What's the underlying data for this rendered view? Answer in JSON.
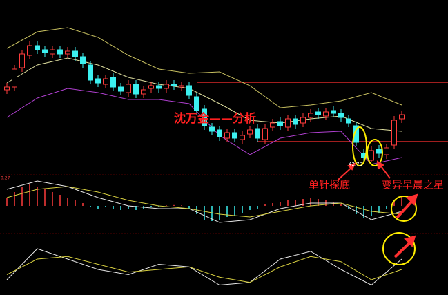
{
  "chart_data": {
    "type": "candlestick",
    "title": "沈万金——分析",
    "annotations": [
      "单针探底",
      "变异早晨之星"
    ],
    "low_label": "42.70",
    "macd_label": "0.27",
    "ylim": [
      42,
      54
    ],
    "open": [
      48.0,
      48.2,
      49.6,
      50.5,
      51.2,
      50.9,
      50.6,
      50.9,
      50.6,
      50.8,
      50.4,
      49.8,
      48.8,
      48.4,
      48.9,
      48.2,
      47.8,
      48.4,
      47.7,
      48.1,
      48.3,
      48.1,
      48.4,
      48.2,
      48.3,
      47.5,
      46.6,
      45.3,
      45.1,
      44.5,
      44.9,
      44.4,
      44.8,
      45.2,
      44.4,
      45.3,
      45.7,
      45.3,
      45.9,
      45.6,
      46.0,
      46.4,
      46.1,
      46.5,
      46.3,
      45.9,
      45.4,
      43.4,
      42.9,
      43.7,
      43.3,
      44.0,
      45.9
    ],
    "close": [
      48.2,
      49.5,
      50.6,
      51.2,
      50.9,
      50.7,
      50.9,
      50.6,
      50.8,
      50.4,
      49.9,
      48.7,
      48.5,
      48.8,
      48.2,
      47.9,
      48.4,
      47.7,
      48.0,
      48.3,
      48.1,
      48.4,
      48.3,
      48.3,
      47.6,
      46.5,
      45.4,
      45.0,
      44.6,
      44.9,
      44.5,
      44.7,
      45.1,
      44.5,
      45.2,
      45.6,
      45.4,
      45.9,
      45.5,
      46.0,
      46.3,
      46.2,
      46.4,
      46.3,
      46.0,
      45.6,
      44.2,
      43.1,
      43.6,
      43.4,
      43.8,
      45.8,
      46.2
    ],
    "high": [
      48.5,
      49.8,
      50.9,
      51.5,
      51.5,
      51.2,
      51.2,
      51.2,
      51.1,
      51.1,
      50.7,
      50.1,
      49.1,
      49.1,
      49.2,
      48.5,
      48.7,
      48.7,
      48.3,
      48.6,
      48.6,
      48.7,
      48.7,
      48.6,
      48.6,
      47.8,
      46.9,
      45.6,
      45.4,
      45.2,
      45.2,
      45.0,
      45.4,
      45.5,
      45.5,
      45.9,
      46.0,
      46.2,
      46.2,
      46.3,
      46.6,
      46.7,
      46.7,
      46.8,
      46.6,
      46.2,
      45.7,
      43.7,
      43.9,
      44.0,
      44.1,
      46.1,
      46.5
    ],
    "low": [
      47.7,
      47.9,
      49.3,
      50.2,
      50.6,
      50.4,
      50.3,
      50.3,
      50.3,
      50.1,
      49.6,
      48.4,
      48.2,
      48.1,
      47.9,
      47.6,
      47.5,
      47.4,
      47.4,
      47.8,
      47.8,
      47.8,
      48.0,
      47.9,
      47.3,
      46.2,
      45.1,
      44.7,
      44.3,
      44.2,
      44.2,
      44.1,
      44.5,
      44.2,
      44.1,
      45.0,
      45.1,
      45.0,
      45.2,
      45.3,
      45.7,
      45.9,
      45.8,
      46.0,
      45.7,
      45.3,
      43.9,
      42.7,
      42.8,
      43.1,
      43.0,
      43.7,
      45.6
    ],
    "up_color": "#ff3c3c",
    "down_color": "#3cf0f0",
    "levels": [
      {
        "value": 48.55,
        "start": 25
      },
      {
        "value": 44.25,
        "start": 33
      }
    ],
    "line_x": [
      0,
      4,
      8,
      12,
      16,
      20,
      24,
      28,
      32,
      36,
      40,
      44,
      48,
      52
    ],
    "bands": [
      {
        "name": "upper",
        "color": "#c8c060",
        "values": [
          51.0,
          52.2,
          52.5,
          51.8,
          50.5,
          49.5,
          49.2,
          49.3,
          48.3,
          46.7,
          46.9,
          47.2,
          47.8,
          46.9
        ]
      },
      {
        "name": "middle",
        "color": "#e0e0a0",
        "values": [
          48.5,
          49.8,
          50.3,
          49.8,
          48.9,
          48.4,
          48.1,
          47.0,
          45.8,
          45.6,
          45.9,
          46.1,
          45.2,
          45.0
        ]
      },
      {
        "name": "lower",
        "color": "#b040d0",
        "values": [
          46.0,
          47.4,
          48.1,
          47.8,
          47.3,
          47.3,
          47.0,
          44.7,
          43.3,
          44.5,
          44.9,
          45.0,
          42.6,
          43.1
        ]
      }
    ],
    "macd_ylim": [
      -1,
      1
    ],
    "macd_hist": [
      0.3,
      0.5,
      0.7,
      0.8,
      0.7,
      0.6,
      0.5,
      0.4,
      0.3,
      0.2,
      0.1,
      -0.05,
      -0.1,
      -0.05,
      -0.1,
      -0.15,
      -0.1,
      -0.15,
      -0.1,
      -0.05,
      -0.05,
      0.02,
      0.03,
      0.02,
      -0.1,
      -0.3,
      -0.5,
      -0.55,
      -0.5,
      -0.4,
      -0.35,
      -0.25,
      -0.15,
      -0.1,
      0.05,
      0.1,
      0.15,
      0.2,
      0.2,
      0.25,
      0.3,
      0.25,
      0.2,
      0.15,
      0.05,
      -0.1,
      -0.3,
      -0.45,
      -0.35,
      -0.25,
      -0.1,
      0.2,
      0.35
    ],
    "macd_lines": [
      {
        "name": "DIF",
        "color": "#e8e8e8",
        "values": [
          0.6,
          0.9,
          0.7,
          0.3,
          0.0,
          -0.1,
          -0.1,
          -0.6,
          -0.5,
          -0.1,
          0.1,
          0.1,
          -0.5,
          -0.2
        ]
      },
      {
        "name": "DEA",
        "color": "#d8d040",
        "values": [
          0.3,
          0.6,
          0.7,
          0.5,
          0.2,
          0.0,
          -0.1,
          -0.3,
          -0.4,
          -0.2,
          0.0,
          0.1,
          -0.2,
          -0.3
        ]
      }
    ],
    "kd_ylim": [
      0,
      100
    ],
    "kd_lines": [
      {
        "name": "K",
        "color": "#e8e8e8",
        "values": [
          20,
          80,
          60,
          40,
          30,
          50,
          45,
          10,
          15,
          60,
          75,
          40,
          10,
          60
        ]
      },
      {
        "name": "D",
        "color": "#d8d040",
        "values": [
          30,
          60,
          65,
          50,
          35,
          40,
          45,
          25,
          15,
          45,
          65,
          55,
          20,
          40
        ]
      }
    ]
  }
}
